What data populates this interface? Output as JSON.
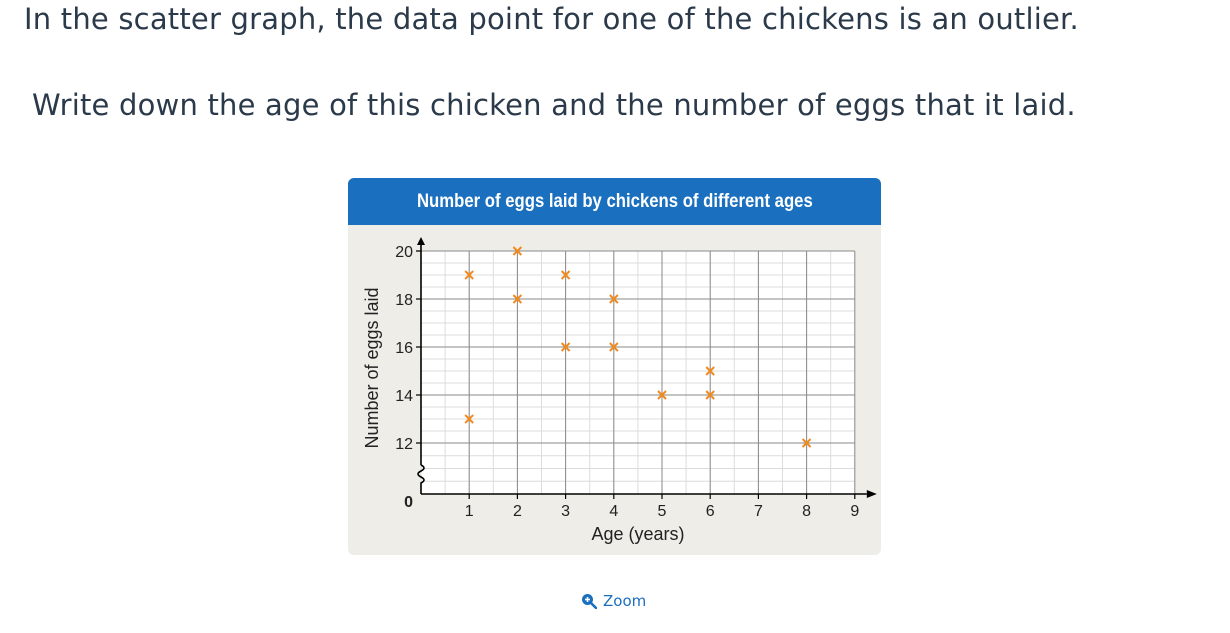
{
  "question": {
    "line1": "In the scatter graph, the data point for one of the chickens is an outlier.",
    "line2": "Write down the age of this chicken and the number of eggs that it laid."
  },
  "zoom": {
    "label": "Zoom",
    "icon": "zoom-in-icon"
  },
  "colors": {
    "header": "#1a6fbf",
    "marker": "#f28a1e",
    "panel": "#efede8",
    "text": "#2b3a4a"
  },
  "chart_data": {
    "type": "scatter",
    "title": "Number of eggs laid by chickens of different ages",
    "xlabel": "Age (years)",
    "ylabel": "Number of eggs laid",
    "x_ticks": [
      "1",
      "2",
      "3",
      "4",
      "5",
      "6",
      "7",
      "8",
      "9"
    ],
    "y_ticks": [
      "12",
      "14",
      "16",
      "18",
      "20"
    ],
    "origin_label": "0",
    "xlim": [
      0,
      9
    ],
    "ylim": [
      0,
      20
    ],
    "y_axis_break": true,
    "grid": true,
    "points": [
      {
        "x": 1,
        "y": 19
      },
      {
        "x": 1,
        "y": 13
      },
      {
        "x": 2,
        "y": 20
      },
      {
        "x": 2,
        "y": 18
      },
      {
        "x": 3,
        "y": 19
      },
      {
        "x": 3,
        "y": 16
      },
      {
        "x": 4,
        "y": 18
      },
      {
        "x": 4,
        "y": 16
      },
      {
        "x": 5,
        "y": 14
      },
      {
        "x": 6,
        "y": 15
      },
      {
        "x": 6,
        "y": 14
      },
      {
        "x": 8,
        "y": 12
      }
    ]
  }
}
